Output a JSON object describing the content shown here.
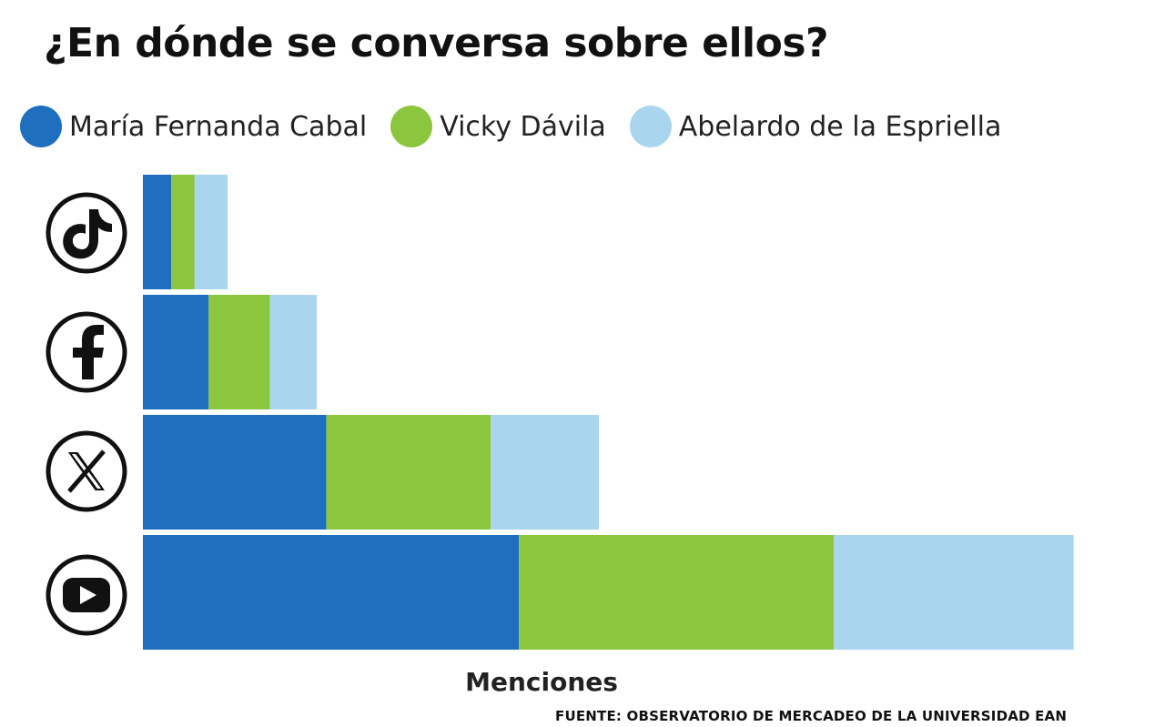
{
  "title": "¿En dónde se conversa sobre ellos?",
  "legend": [
    {
      "label": "María Fernanda Cabal",
      "color": "#1f6fbf"
    },
    {
      "label": "Vicky Dávila",
      "color": "#8cc63f"
    },
    {
      "label": "Abelardo de la Espriella",
      "color": "#a9d6ee"
    }
  ],
  "xlabel": "Menciones",
  "source": "FUENTE: OBSERVATORIO DE MERCADEO DE LA UNIVERSIDAD EAN",
  "chart_data": {
    "type": "bar",
    "orientation": "horizontal",
    "stacked": true,
    "categories": [
      "TikTok",
      "Facebook",
      "X",
      "YouTube"
    ],
    "category_icons": [
      "tiktok-icon",
      "facebook-icon",
      "x-icon",
      "youtube-icon"
    ],
    "series": [
      {
        "name": "María Fernanda Cabal",
        "color": "#1f6fbf",
        "values": [
          3,
          7,
          19.5,
          40
        ]
      },
      {
        "name": "Vicky Dávila",
        "color": "#8cc63f",
        "values": [
          2.5,
          6.5,
          17.5,
          33.5
        ]
      },
      {
        "name": "Abelardo de la Espriella",
        "color": "#a9d6ee",
        "values": [
          3.5,
          5,
          11.5,
          25.5
        ]
      }
    ],
    "xlabel": "Menciones",
    "xlim": [
      0,
      100
    ],
    "value_axis_ticks": false,
    "grid": false,
    "legend_position": "top-left"
  }
}
